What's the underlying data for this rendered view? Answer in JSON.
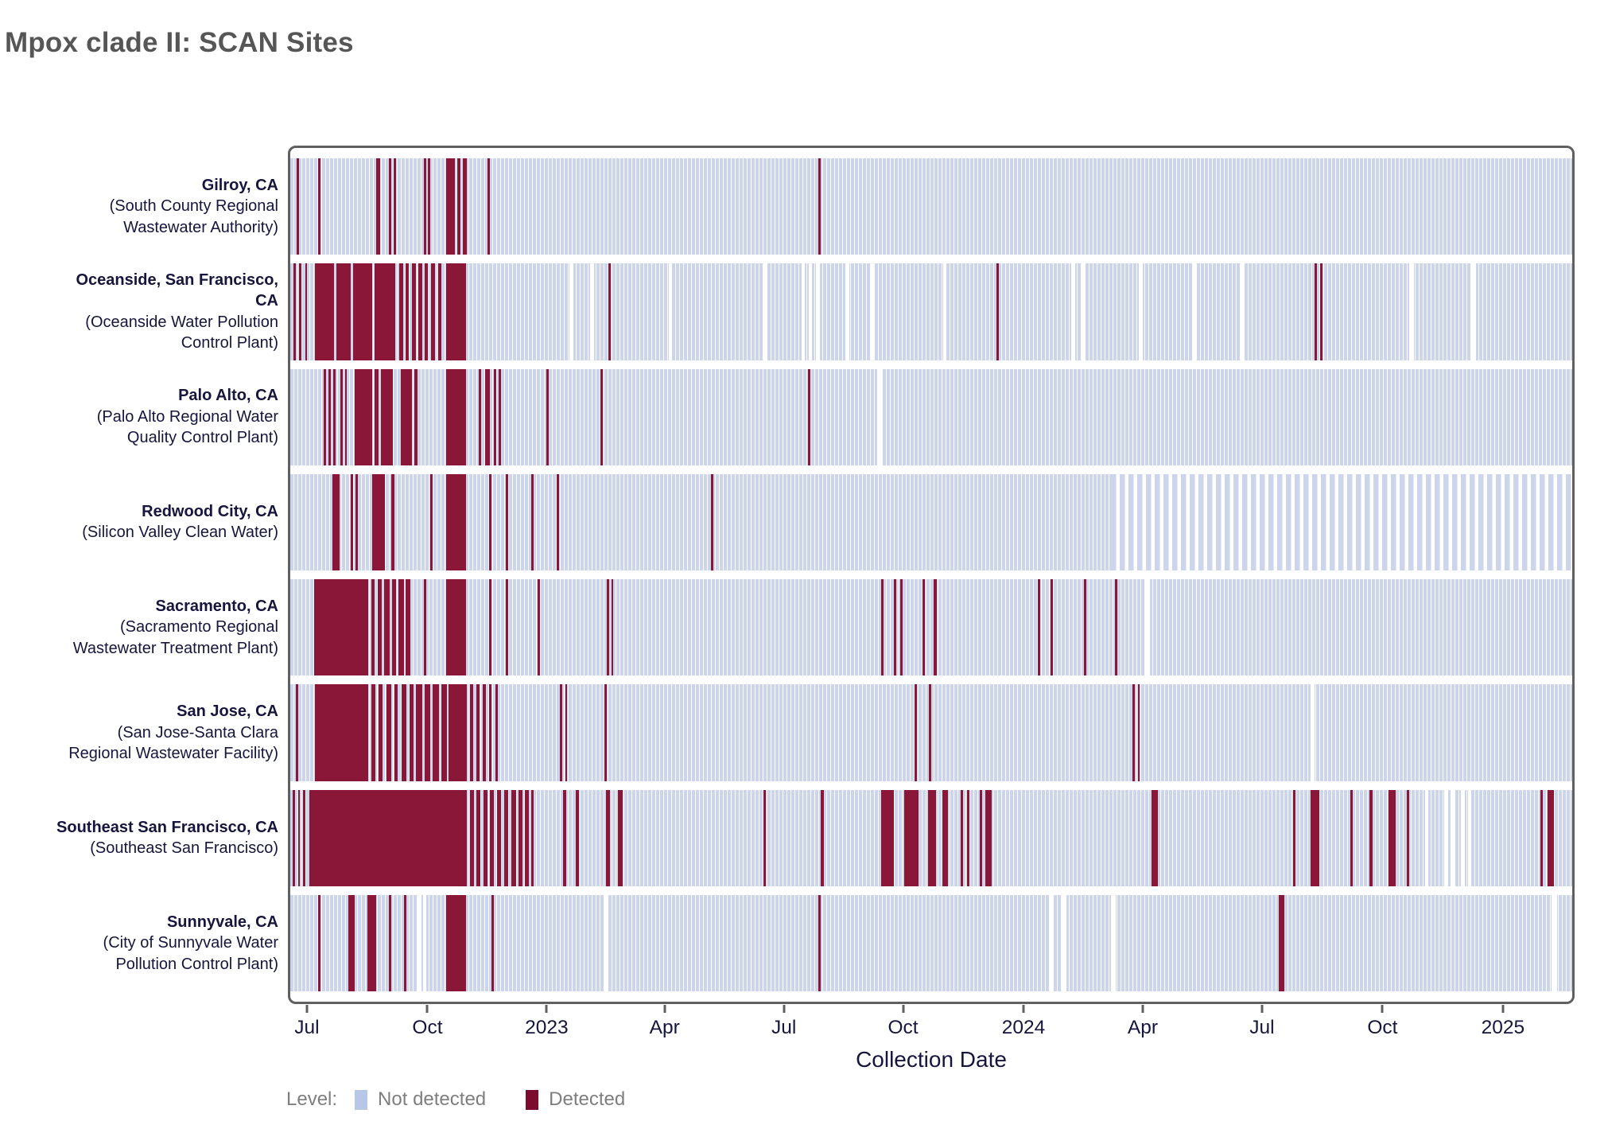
{
  "title": "Mpox clade II: SCAN Sites",
  "axis": {
    "title": "Collection Date",
    "ticks": [
      {
        "label": "Jul",
        "pct": 1.3
      },
      {
        "label": "Oct",
        "pct": 10.7
      },
      {
        "label": "2023",
        "pct": 20.0
      },
      {
        "label": "Apr",
        "pct": 29.2
      },
      {
        "label": "Jul",
        "pct": 38.5
      },
      {
        "label": "Oct",
        "pct": 47.8
      },
      {
        "label": "2024",
        "pct": 57.2
      },
      {
        "label": "Apr",
        "pct": 66.5
      },
      {
        "label": "Jul",
        "pct": 75.8
      },
      {
        "label": "Oct",
        "pct": 85.2
      },
      {
        "label": "2025",
        "pct": 94.6
      }
    ]
  },
  "legend": {
    "label": "Level:",
    "items": [
      {
        "label": "Not detected",
        "color": "#b8c6e8"
      },
      {
        "label": "Detected",
        "color": "#7c0c2d"
      }
    ]
  },
  "colors": {
    "not_detected_band": "#ccd5eb",
    "detected_bar": "#8a1638",
    "panel_border": "#606060",
    "axis_text": "#15153d",
    "title_text": "#565656",
    "legend_text": "#7e7e7e"
  },
  "chart_data": {
    "type": "heatmap",
    "title": "Mpox clade II: SCAN Sites",
    "xlabel": "Collection Date",
    "x_range": "mid-June 2022 to late-February 2025",
    "levels": [
      "Not detected",
      "Detected"
    ],
    "note": "Each row is a wastewater site; thin vertical bars are samples by collection date. Segments given as [start_pct, width_pct] of the x-axis.",
    "sites": [
      {
        "city": "Gilroy, CA",
        "facility": "(South County Regional Wastewater Authority)",
        "detected": [
          [
            0.5,
            0.18
          ],
          [
            2.2,
            0.18
          ],
          [
            6.7,
            0.3
          ],
          [
            7.7,
            0.18
          ],
          [
            8.05,
            0.18
          ],
          [
            10.4,
            0.18
          ],
          [
            10.75,
            0.18
          ],
          [
            12.15,
            0.7
          ],
          [
            13.0,
            0.3
          ],
          [
            13.45,
            0.35
          ],
          [
            15.4,
            0.18
          ],
          [
            41.2,
            0.18
          ]
        ],
        "no_data": [],
        "sparse_sampling": null
      },
      {
        "city": "Oceanside, San Francisco, CA",
        "facility": "(Oceanside Water Pollution Control Plant)",
        "detected": [
          [
            0.25,
            0.18
          ],
          [
            0.7,
            0.18
          ],
          [
            1.15,
            0.18
          ],
          [
            1.9,
            1.5
          ],
          [
            3.6,
            1.1
          ],
          [
            4.9,
            1.5
          ],
          [
            6.6,
            1.6
          ],
          [
            8.5,
            0.3
          ],
          [
            9.0,
            0.25
          ],
          [
            9.5,
            0.3
          ],
          [
            10.0,
            0.3
          ],
          [
            10.5,
            0.22
          ],
          [
            11.0,
            0.3
          ],
          [
            11.55,
            0.25
          ],
          [
            12.15,
            1.55
          ],
          [
            24.8,
            0.18
          ],
          [
            55.1,
            0.2
          ],
          [
            79.9,
            0.18
          ],
          [
            80.35,
            0.15
          ]
        ],
        "no_data": [
          [
            21.8,
            0.3
          ],
          [
            23.4,
            0.3
          ],
          [
            29.5,
            0.3
          ],
          [
            36.9,
            0.3
          ],
          [
            39.9,
            0.25
          ],
          [
            40.45,
            0.25
          ],
          [
            41.0,
            0.3
          ],
          [
            43.3,
            0.3
          ],
          [
            45.3,
            0.3
          ],
          [
            50.9,
            0.3
          ],
          [
            60.9,
            0.35
          ],
          [
            61.7,
            0.3
          ],
          [
            66.2,
            0.3
          ],
          [
            70.4,
            0.3
          ],
          [
            74.1,
            0.3
          ],
          [
            87.3,
            0.35
          ],
          [
            92.1,
            0.4
          ]
        ],
        "sparse_sampling": null
      },
      {
        "city": "Palo Alto, CA",
        "facility": "(Palo Alto Regional Water Quality Control Plant)",
        "detected": [
          [
            2.6,
            0.18
          ],
          [
            3.0,
            0.18
          ],
          [
            3.35,
            0.15
          ],
          [
            3.9,
            0.18
          ],
          [
            4.25,
            0.15
          ],
          [
            5.0,
            1.4
          ],
          [
            6.6,
            0.3
          ],
          [
            7.1,
            0.9
          ],
          [
            8.6,
            0.9
          ],
          [
            9.7,
            0.2
          ],
          [
            12.15,
            1.55
          ],
          [
            14.7,
            0.2
          ],
          [
            15.2,
            0.35
          ],
          [
            15.9,
            0.18
          ],
          [
            16.25,
            0.18
          ],
          [
            20.0,
            0.18
          ],
          [
            24.2,
            0.18
          ],
          [
            40.4,
            0.18
          ]
        ],
        "no_data": [
          [
            45.8,
            0.35
          ]
        ],
        "sparse_sampling": null
      },
      {
        "city": "Redwood City, CA",
        "facility": "(Silicon Valley Clean Water)",
        "detected": [
          [
            3.3,
            0.55
          ],
          [
            4.7,
            0.18
          ],
          [
            5.1,
            0.18
          ],
          [
            6.4,
            1.0
          ],
          [
            7.9,
            0.22
          ],
          [
            10.9,
            0.18
          ],
          [
            12.15,
            1.55
          ],
          [
            15.5,
            0.18
          ],
          [
            16.8,
            0.18
          ],
          [
            18.8,
            0.18
          ],
          [
            20.8,
            0.18
          ],
          [
            32.8,
            0.18
          ]
        ],
        "no_data": [],
        "sparse_sampling": {
          "start_pct": 64.0,
          "end_pct": 100
        }
      },
      {
        "city": "Sacramento, CA",
        "facility": "(Sacramento Regional Wastewater Treatment Plant)",
        "detected": [
          [
            1.85,
            4.25
          ],
          [
            6.3,
            0.3
          ],
          [
            6.85,
            0.3
          ],
          [
            7.35,
            0.4
          ],
          [
            7.95,
            0.3
          ],
          [
            8.45,
            0.4
          ],
          [
            9.0,
            0.35
          ],
          [
            10.4,
            0.2
          ],
          [
            12.15,
            1.55
          ],
          [
            15.5,
            0.2
          ],
          [
            16.8,
            0.2
          ],
          [
            19.3,
            0.2
          ],
          [
            24.7,
            0.2
          ],
          [
            25.05,
            0.15
          ],
          [
            46.1,
            0.2
          ],
          [
            47.1,
            0.18
          ],
          [
            47.6,
            0.18
          ],
          [
            49.3,
            0.2
          ],
          [
            50.2,
            0.22
          ],
          [
            58.3,
            0.2
          ],
          [
            59.3,
            0.2
          ],
          [
            61.9,
            0.2
          ],
          [
            64.3,
            0.2
          ]
        ],
        "no_data": [
          [
            66.7,
            0.35
          ]
        ],
        "sparse_sampling": null
      },
      {
        "city": "San Jose, CA",
        "facility": "(San Jose-Santa Clara Regional Wastewater Facility)",
        "detected": [
          [
            0.45,
            0.18
          ],
          [
            1.9,
            4.2
          ],
          [
            6.3,
            0.35
          ],
          [
            6.9,
            0.3
          ],
          [
            7.5,
            0.35
          ],
          [
            8.1,
            0.3
          ],
          [
            8.7,
            0.35
          ],
          [
            9.3,
            0.3
          ],
          [
            9.8,
            0.5
          ],
          [
            10.5,
            0.4
          ],
          [
            11.1,
            0.5
          ],
          [
            11.8,
            0.4
          ],
          [
            12.35,
            1.4
          ],
          [
            14.0,
            0.25
          ],
          [
            14.5,
            0.25
          ],
          [
            15.0,
            0.25
          ],
          [
            15.5,
            0.22
          ],
          [
            16.0,
            0.2
          ],
          [
            21.0,
            0.2
          ],
          [
            21.45,
            0.15
          ],
          [
            24.5,
            0.2
          ],
          [
            48.7,
            0.2
          ],
          [
            49.8,
            0.2
          ],
          [
            65.7,
            0.18
          ],
          [
            66.1,
            0.18
          ]
        ],
        "no_data": [
          [
            79.6,
            0.3
          ]
        ],
        "sparse_sampling": null
      },
      {
        "city": "Southeast San Francisco, CA",
        "facility": "(Southeast San Francisco)",
        "detected": [
          [
            0.2,
            0.15
          ],
          [
            0.6,
            0.15
          ],
          [
            1.0,
            0.2
          ],
          [
            1.5,
            12.3
          ],
          [
            14.0,
            0.3
          ],
          [
            14.5,
            0.3
          ],
          [
            15.05,
            0.35
          ],
          [
            15.6,
            0.3
          ],
          [
            16.1,
            0.35
          ],
          [
            16.7,
            0.3
          ],
          [
            17.25,
            0.35
          ],
          [
            17.8,
            0.3
          ],
          [
            18.3,
            0.3
          ],
          [
            18.8,
            0.2
          ],
          [
            21.3,
            0.2
          ],
          [
            22.3,
            0.2
          ],
          [
            24.6,
            0.35
          ],
          [
            25.55,
            0.4
          ],
          [
            36.9,
            0.2
          ],
          [
            41.4,
            0.2
          ],
          [
            46.1,
            1.0
          ],
          [
            47.9,
            1.1
          ],
          [
            49.75,
            0.6
          ],
          [
            50.85,
            0.45
          ],
          [
            52.3,
            0.2
          ],
          [
            52.8,
            0.2
          ],
          [
            53.8,
            0.2
          ],
          [
            54.2,
            0.5
          ],
          [
            67.2,
            0.45
          ],
          [
            78.2,
            0.2
          ],
          [
            79.6,
            0.65
          ],
          [
            82.7,
            0.2
          ],
          [
            84.2,
            0.2
          ],
          [
            85.7,
            0.5
          ],
          [
            87.1,
            0.2
          ],
          [
            97.5,
            0.2
          ],
          [
            98.1,
            0.5
          ]
        ],
        "no_data": [
          [
            88.5,
            0.3
          ],
          [
            90.0,
            0.3
          ],
          [
            90.6,
            0.25
          ],
          [
            91.3,
            0.3
          ],
          [
            91.85,
            0.25
          ]
        ],
        "sparse_sampling": null
      },
      {
        "city": "Sunnyvale, CA",
        "facility": "(City of Sunnyvale Water Pollution Control Plant)",
        "detected": [
          [
            2.2,
            0.18
          ],
          [
            4.5,
            0.5
          ],
          [
            6.0,
            0.7
          ],
          [
            7.7,
            0.18
          ],
          [
            8.85,
            0.18
          ],
          [
            12.15,
            1.55
          ],
          [
            15.7,
            0.18
          ],
          [
            41.2,
            0.18
          ],
          [
            77.1,
            0.45
          ]
        ],
        "no_data": [
          [
            9.95,
            0.3
          ],
          [
            10.35,
            0.25
          ],
          [
            24.5,
            0.25
          ],
          [
            59.2,
            0.35
          ],
          [
            60.2,
            0.35
          ],
          [
            64.0,
            0.4
          ],
          [
            98.4,
            0.4
          ]
        ],
        "sparse_sampling": null
      }
    ]
  }
}
